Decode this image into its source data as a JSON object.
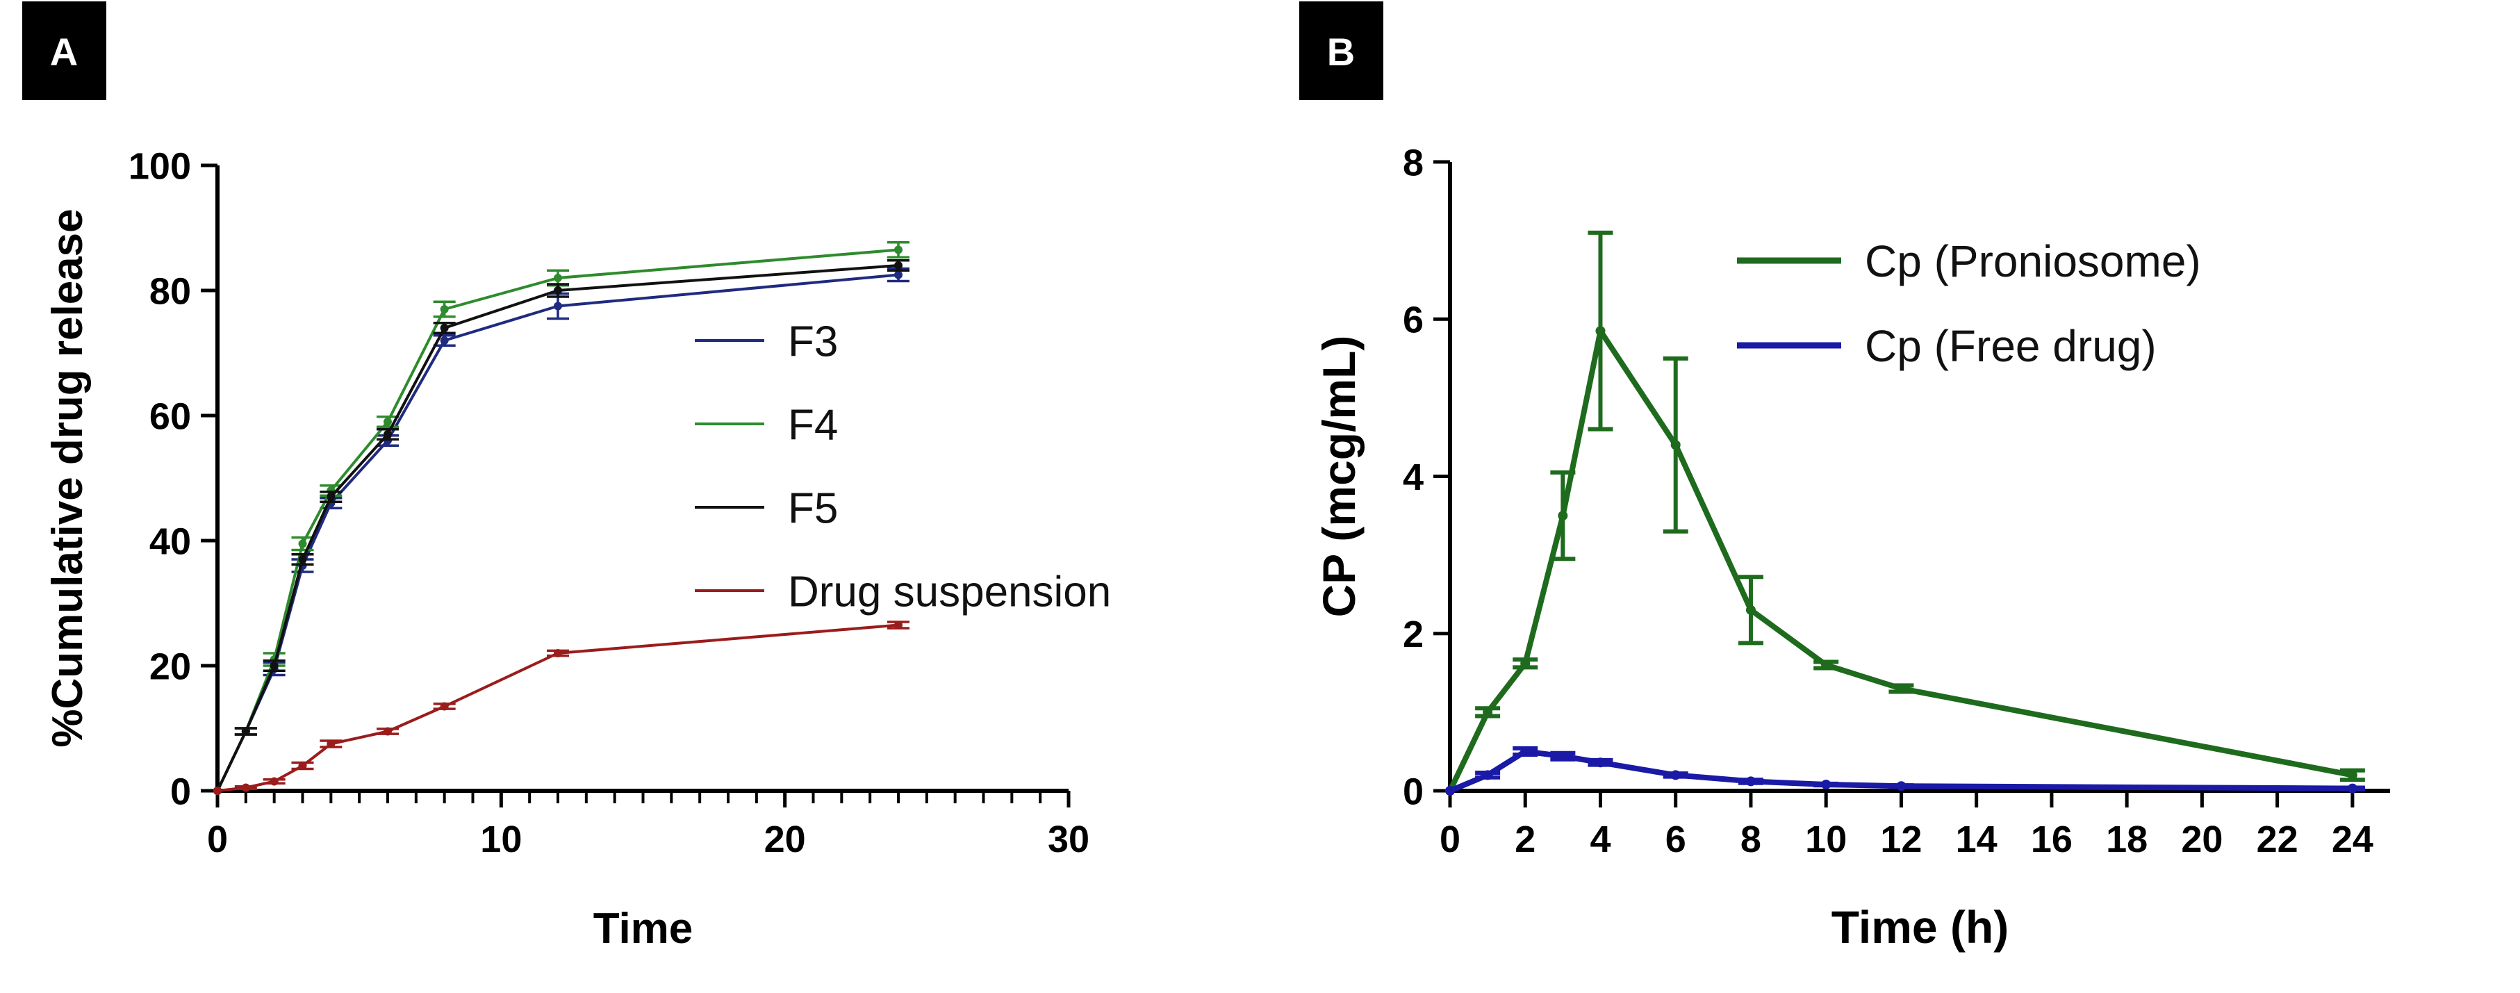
{
  "panels": {
    "a": {
      "label": "A"
    },
    "b": {
      "label": "B"
    }
  },
  "chart_data": [
    {
      "type": "line",
      "panel": "A",
      "xlabel": "Time",
      "ylabel": "%Cumulative drug release",
      "xlim": [
        0,
        30
      ],
      "ylim": [
        0,
        100
      ],
      "x_ticks": [
        0,
        10,
        20,
        30
      ],
      "x_minor_step": 1,
      "y_ticks": [
        0,
        20,
        40,
        60,
        80,
        100
      ],
      "legend_position": "center-right",
      "series": [
        {
          "name": "F3",
          "color": "#1f2a80",
          "x": [
            0,
            1,
            2,
            3,
            4,
            6,
            8,
            12,
            24
          ],
          "y": [
            0,
            9.5,
            19.5,
            36,
            46,
            56,
            72,
            77.5,
            82.5
          ],
          "err": [
            0,
            0.5,
            1,
            1,
            0.8,
            0.8,
            0.8,
            2,
            1
          ]
        },
        {
          "name": "F4",
          "color": "#2e8b2e",
          "x": [
            0,
            1,
            2,
            3,
            4,
            6,
            8,
            12,
            24
          ],
          "y": [
            0,
            9.5,
            21,
            39.5,
            48,
            59,
            77,
            82,
            86.5
          ],
          "err": [
            0,
            0.5,
            1,
            1,
            0.8,
            0.8,
            1.2,
            1.2,
            1.2
          ]
        },
        {
          "name": "F5",
          "color": "#111111",
          "x": [
            0,
            1,
            2,
            3,
            4,
            6,
            8,
            12,
            24
          ],
          "y": [
            0,
            9.5,
            20,
            37,
            47,
            57,
            74,
            80,
            84
          ],
          "err": [
            0,
            0.5,
            0.8,
            0.8,
            0.8,
            0.8,
            0.8,
            1,
            0.8
          ]
        },
        {
          "name": "Drug suspension",
          "color": "#9b1c1c",
          "x": [
            0,
            1,
            2,
            3,
            4,
            6,
            8,
            12,
            24
          ],
          "y": [
            0,
            0.5,
            1.5,
            4,
            7.5,
            9.5,
            13.5,
            22,
            26.5
          ],
          "err": [
            0,
            0.2,
            0.3,
            0.5,
            0.5,
            0.4,
            0.4,
            0.4,
            0.5
          ]
        }
      ]
    },
    {
      "type": "line",
      "panel": "B",
      "xlabel": "Time (h)",
      "ylabel": "CP (mcg/mL)",
      "xlim": [
        0,
        25
      ],
      "ylim": [
        0,
        8
      ],
      "x_ticks": [
        0,
        2,
        4,
        6,
        8,
        10,
        12,
        14,
        16,
        18,
        20,
        22,
        24
      ],
      "y_ticks": [
        0,
        2,
        4,
        6,
        8
      ],
      "legend_position": "top-center",
      "series": [
        {
          "name": "Cp (Proniosome)",
          "color": "#1e6b1e",
          "x": [
            0,
            1,
            2,
            3,
            4,
            6,
            8,
            10,
            12,
            24
          ],
          "y": [
            0,
            1.0,
            1.62,
            3.5,
            5.85,
            4.4,
            2.3,
            1.6,
            1.3,
            0.2
          ],
          "err": [
            0,
            0.05,
            0.05,
            0.55,
            1.25,
            1.1,
            0.42,
            0.04,
            0.04,
            0.06
          ]
        },
        {
          "name": "Cp (Free drug)",
          "color": "#1a1aa6",
          "x": [
            0,
            1,
            2,
            3,
            4,
            6,
            8,
            10,
            12,
            24
          ],
          "y": [
            0,
            0.2,
            0.5,
            0.44,
            0.36,
            0.2,
            0.12,
            0.08,
            0.06,
            0.03
          ],
          "err": [
            0,
            0.03,
            0.04,
            0.04,
            0.03,
            0.02,
            0.02,
            0.01,
            0.01,
            0.01
          ]
        }
      ]
    }
  ]
}
